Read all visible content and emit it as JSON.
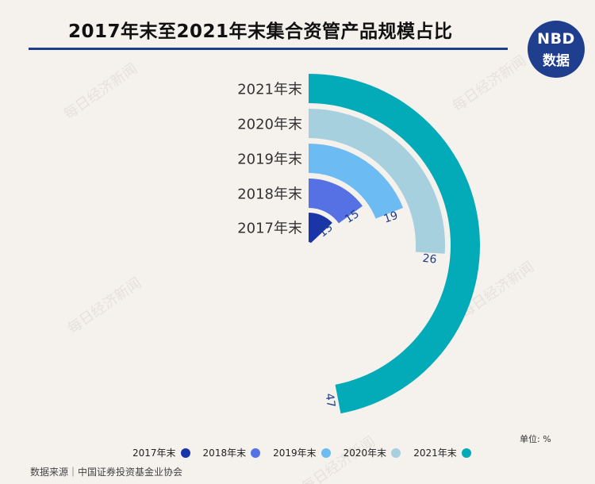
{
  "header": {
    "title": "2017年末至2021年末集合资管产品规模占比"
  },
  "logo": {
    "line1": "NBD",
    "line2": "数据"
  },
  "watermark": "每日经济新闻",
  "unit_label": "单位: %",
  "source": "数据来源｜中国证券投资基金业协会",
  "chart_data": {
    "type": "radial-bar",
    "title": "2017年末至2021年末集合资管产品规模占比",
    "unit": "%",
    "categories": [
      "2017年末",
      "2018年末",
      "2019年末",
      "2020年末",
      "2021年末"
    ],
    "values": [
      13,
      15,
      19,
      26,
      47
    ],
    "value_labels": [
      "13",
      "15",
      "19",
      "26",
      "47"
    ],
    "colors": [
      "#1a35a8",
      "#5571e3",
      "#6cbbf2",
      "#a6d0dd",
      "#03aab7"
    ],
    "max_value": 100,
    "legend": {
      "placement": "bottom",
      "entries": [
        "2017年末",
        "2018年末",
        "2019年末",
        "2020年末",
        "2021年末"
      ]
    },
    "grid": false
  }
}
